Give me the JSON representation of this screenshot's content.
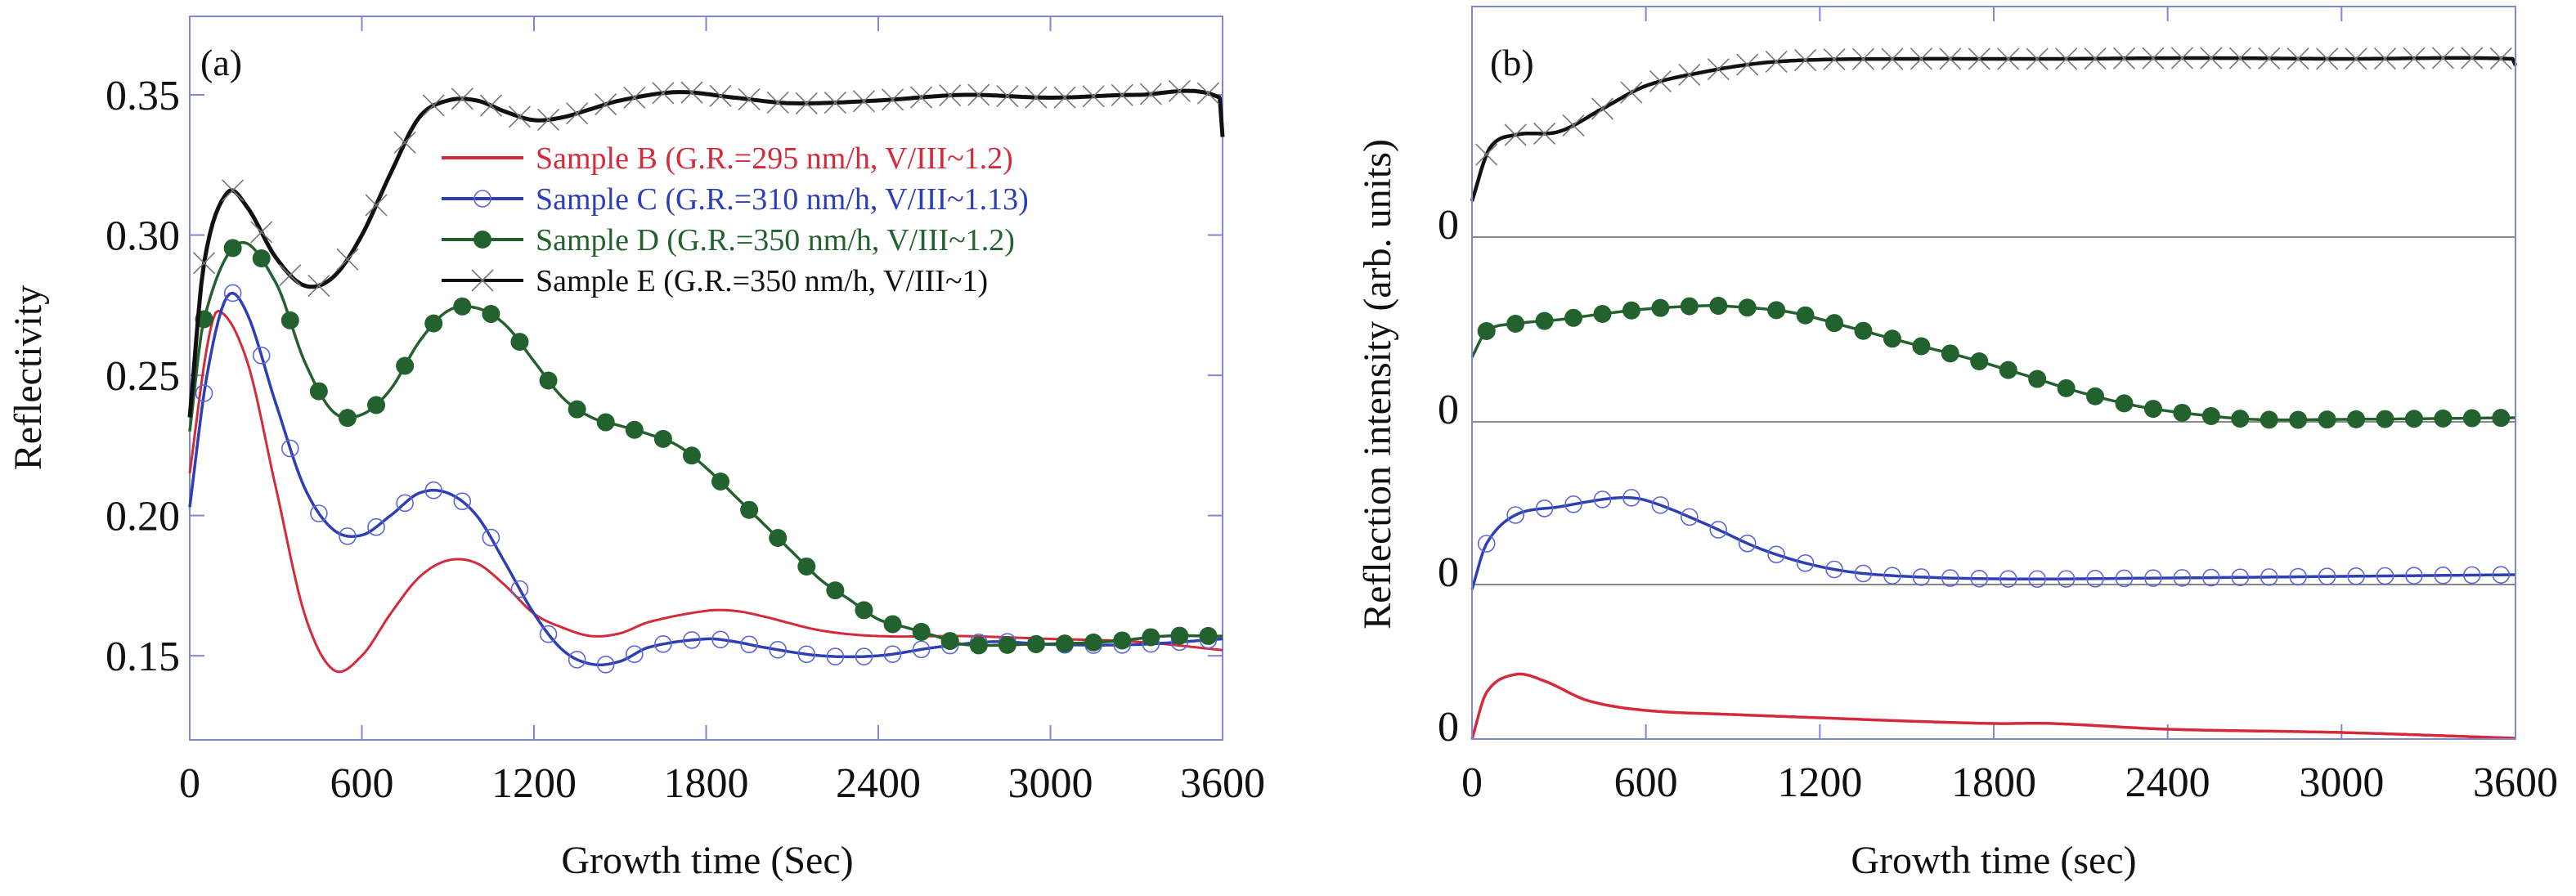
{
  "chart_data": [
    {
      "type": "line",
      "panel_label": "(a)",
      "xlabel": "Growth time (Sec)",
      "ylabel": "Reflectivity",
      "xlim": [
        0,
        3600
      ],
      "ylim": [
        0.12,
        0.378
      ],
      "xticks": [
        0,
        600,
        1200,
        1800,
        2400,
        3000,
        3600
      ],
      "xtick_labels": [
        "0",
        "600",
        "1200",
        "1800",
        "2400",
        "3000",
        "3600"
      ],
      "yticks": [
        0.15,
        0.2,
        0.25,
        0.3,
        0.35
      ],
      "ytick_labels": [
        "0.15",
        "0.20",
        "0.25",
        "0.30",
        "0.35"
      ],
      "legend_position": "upper-right",
      "series": [
        {
          "name": "Sample B (G.R.=295 nm/h, V/III~1.2)",
          "color": "#d42a3c",
          "marker": "none",
          "x": [
            0,
            60,
            100,
            200,
            300,
            400,
            500,
            600,
            700,
            800,
            900,
            1000,
            1100,
            1200,
            1300,
            1400,
            1500,
            1600,
            1800,
            1900,
            2000,
            2200,
            2400,
            2700,
            3000,
            3300,
            3600
          ],
          "y": [
            0.215,
            0.26,
            0.273,
            0.255,
            0.21,
            0.165,
            0.145,
            0.15,
            0.165,
            0.178,
            0.184,
            0.183,
            0.175,
            0.165,
            0.16,
            0.157,
            0.158,
            0.162,
            0.166,
            0.166,
            0.164,
            0.159,
            0.157,
            0.157,
            0.156,
            0.155,
            0.152
          ]
        },
        {
          "name": "Sample C (G.R.=310 nm/h, V/III~1.13)",
          "color": "#2e3fb3",
          "marker": "open-circle",
          "x": [
            0,
            60,
            130,
            200,
            300,
            400,
            500,
            600,
            700,
            800,
            900,
            1000,
            1100,
            1200,
            1300,
            1400,
            1500,
            1600,
            1800,
            1900,
            2000,
            2200,
            2400,
            2600,
            2800,
            3000,
            3300,
            3600
          ],
          "y": [
            0.203,
            0.25,
            0.278,
            0.272,
            0.24,
            0.21,
            0.195,
            0.193,
            0.2,
            0.208,
            0.208,
            0.2,
            0.183,
            0.165,
            0.152,
            0.147,
            0.148,
            0.153,
            0.156,
            0.155,
            0.153,
            0.15,
            0.15,
            0.153,
            0.155,
            0.154,
            0.154,
            0.156
          ]
        },
        {
          "name": "Sample D (G.R.=350 nm/h, V/III~1.2)",
          "color": "#23612f",
          "marker": "filled-circle",
          "x": [
            0,
            50,
            170,
            300,
            400,
            500,
            600,
            700,
            800,
            900,
            1000,
            1100,
            1200,
            1300,
            1400,
            1500,
            1600,
            1700,
            1800,
            1900,
            2000,
            2100,
            2200,
            2300,
            2400,
            2500,
            2600,
            2700,
            2900,
            3200,
            3400,
            3600
          ],
          "y": [
            0.23,
            0.27,
            0.297,
            0.283,
            0.255,
            0.237,
            0.236,
            0.245,
            0.262,
            0.273,
            0.274,
            0.268,
            0.255,
            0.242,
            0.235,
            0.232,
            0.229,
            0.225,
            0.217,
            0.207,
            0.197,
            0.187,
            0.177,
            0.17,
            0.163,
            0.16,
            0.157,
            0.154,
            0.154,
            0.155,
            0.157,
            0.157
          ]
        },
        {
          "name": "Sample E (G.R.=350 nm/h, V/III~1)",
          "color": "#111111",
          "marker": "cross",
          "x": [
            0,
            50,
            130,
            200,
            300,
            400,
            500,
            600,
            700,
            800,
            900,
            1000,
            1100,
            1200,
            1300,
            1400,
            1500,
            1700,
            1900,
            2100,
            2400,
            2700,
            3000,
            3300,
            3590,
            3600
          ],
          "y": [
            0.235,
            0.29,
            0.315,
            0.31,
            0.292,
            0.282,
            0.285,
            0.3,
            0.322,
            0.342,
            0.348,
            0.348,
            0.344,
            0.341,
            0.342,
            0.345,
            0.348,
            0.351,
            0.349,
            0.347,
            0.348,
            0.35,
            0.349,
            0.35,
            0.349,
            0.335
          ]
        }
      ]
    },
    {
      "type": "line",
      "panel_label": "(b)",
      "xlabel": "Growth time (sec)",
      "ylabel": "Reflection intensity (arb. units)",
      "xlim": [
        0,
        3600
      ],
      "xticks": [
        0,
        600,
        1200,
        1800,
        2400,
        3000,
        3600
      ],
      "xtick_labels": [
        "0",
        "600",
        "1200",
        "1800",
        "2400",
        "3000",
        "3600"
      ],
      "zero_label": "0",
      "stacking": "vertically offset traces, each with its own zero baseline",
      "series": [
        {
          "name": "Sample E",
          "color": "#111111",
          "marker": "cross",
          "x": [
            0,
            60,
            150,
            300,
            450,
            600,
            800,
            1000,
            1200,
            1500,
            2000,
            2500,
            3000,
            3590,
            3600
          ],
          "y": [
            0.44,
            1.08,
            1.25,
            1.29,
            1.57,
            1.85,
            2.02,
            2.13,
            2.17,
            2.18,
            2.18,
            2.19,
            2.18,
            2.18,
            2.1
          ]
        },
        {
          "name": "Sample D",
          "color": "#23612f",
          "marker": "filled-circle",
          "x": [
            0,
            50,
            150,
            300,
            450,
            600,
            800,
            900,
            1100,
            1300,
            1500,
            1700,
            1900,
            2100,
            2300,
            2500,
            2700,
            3000,
            3600
          ],
          "y": [
            0.79,
            1.11,
            1.2,
            1.25,
            1.32,
            1.38,
            1.42,
            1.41,
            1.34,
            1.16,
            0.97,
            0.79,
            0.58,
            0.36,
            0.19,
            0.09,
            0.03,
            0.03,
            0.05
          ]
        },
        {
          "name": "Sample C",
          "color": "#2e3fb3",
          "marker": "open-circle",
          "x": [
            0,
            50,
            150,
            300,
            500,
            600,
            800,
            1000,
            1200,
            1400,
            1800,
            2400,
            3000,
            3600
          ],
          "y": [
            -0.06,
            0.5,
            0.85,
            0.95,
            1.06,
            1.03,
            0.75,
            0.43,
            0.22,
            0.12,
            0.07,
            0.08,
            0.1,
            0.12
          ]
        },
        {
          "name": "Sample B",
          "color": "#d42a3c",
          "marker": "none",
          "x": [
            0,
            50,
            150,
            250,
            400,
            600,
            900,
            1200,
            1500,
            1800,
            2000,
            2400,
            3000,
            3600
          ],
          "y": [
            0,
            0.57,
            0.79,
            0.71,
            0.47,
            0.35,
            0.3,
            0.26,
            0.22,
            0.19,
            0.19,
            0.12,
            0.08,
            0.01
          ]
        }
      ]
    }
  ]
}
